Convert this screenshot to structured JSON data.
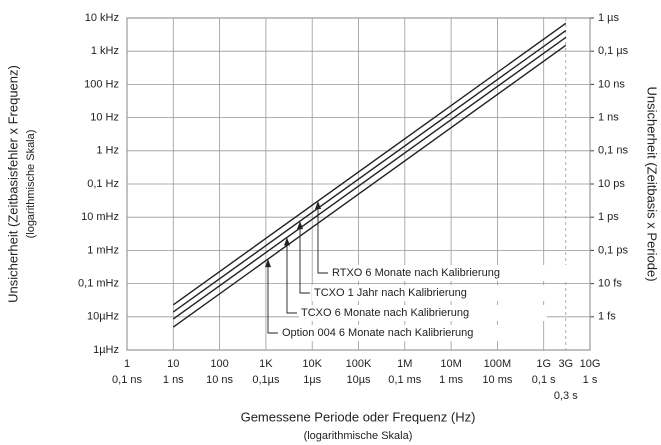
{
  "chart_data": {
    "type": "line",
    "xlabel": "Gemessene Periode oder Frequenz (Hz)",
    "xlabel_note": "(logarithmische Skala)",
    "ylabel": "Unsicherheit (Zeitbasisfehler x Frequenz)",
    "ylabel_note": "(logarithmische Skala)",
    "y2label": "Unsicherheit (Zeitbasis x Periode)",
    "xscale": "log",
    "yscale": "log",
    "grid": true,
    "xlim": [
      1,
      10000000000
    ],
    "ylim": [
      1e-06,
      10000
    ],
    "y2lim": [
      1e-16,
      1e-06
    ],
    "xticks": [
      1,
      10,
      100,
      {
        "value": 1000,
        "label": "1K"
      },
      {
        "value": 10000,
        "label": "10K"
      },
      {
        "value": 100000,
        "label": "100K"
      },
      {
        "value": 1000000,
        "label": "1M"
      },
      {
        "value": 10000000,
        "label": "10M"
      },
      {
        "value": 100000000,
        "label": "100M"
      },
      {
        "value": 1000000000,
        "label": "1G"
      },
      {
        "value": 3000000000,
        "label": "3G"
      },
      {
        "value": 10000000000,
        "label": "10G"
      }
    ],
    "xtick_periods": [
      "0,1 ns",
      "1 ns",
      "10 ns",
      "0,1µs",
      "1µs",
      "10µs",
      "0,1 ms",
      "1 ms",
      "10 ms",
      "0,1 s",
      "0,3 s",
      "1 s"
    ],
    "yticks": [
      {
        "value": 10000,
        "label": "10 kHz"
      },
      {
        "value": 1000,
        "label": "1 kHz"
      },
      {
        "value": 100,
        "label": "100 Hz"
      },
      {
        "value": 10,
        "label": "10 Hz"
      },
      {
        "value": 1,
        "label": "1 Hz"
      },
      {
        "value": 0.1,
        "label": "0,1 Hz"
      },
      {
        "value": 0.01,
        "label": "10 mHz"
      },
      {
        "value": 0.001,
        "label": "1 mHz"
      },
      {
        "value": 0.0001,
        "label": "0,1 mHz"
      },
      {
        "value": 1e-05,
        "label": "10µHz"
      },
      {
        "value": 1e-06,
        "label": "1µHz"
      }
    ],
    "y2ticks": [
      {
        "value": 1e-06,
        "label": "1 µs"
      },
      {
        "value": 1e-07,
        "label": "0,1 µs"
      },
      {
        "value": 1e-08,
        "label": "10 ns"
      },
      {
        "value": 1e-09,
        "label": "1 ns"
      },
      {
        "value": 1e-10,
        "label": "0,1 ns"
      },
      {
        "value": 1e-11,
        "label": "10 ps"
      },
      {
        "value": 1e-12,
        "label": "1 ps"
      },
      {
        "value": 1e-13,
        "label": "0,1 ps"
      },
      {
        "value": 1e-14,
        "label": "10 fs"
      },
      {
        "value": 1e-15,
        "label": "1 fs"
      }
    ],
    "series": [
      {
        "name": "RTXO 6 Monate nach Kalibrierung",
        "color": "#222222",
        "x": [
          10,
          3000000000
        ],
        "values": [
          2.3e-05,
          6900
        ]
      },
      {
        "name": "TCXO 1 Jahr nach Kalibrierung",
        "color": "#222222",
        "x": [
          10,
          3000000000
        ],
        "values": [
          1.4e-05,
          4200
        ]
      },
      {
        "name": "TCXO 6 Monate nach Kalibrierung",
        "color": "#222222",
        "x": [
          10,
          3000000000
        ],
        "values": [
          8.6e-06,
          2600
        ]
      },
      {
        "name": "Option 004 6 Monate nach Kalibrierung",
        "color": "#222222",
        "x": [
          10,
          3000000000
        ],
        "values": [
          4.9e-06,
          1500
        ]
      }
    ]
  }
}
